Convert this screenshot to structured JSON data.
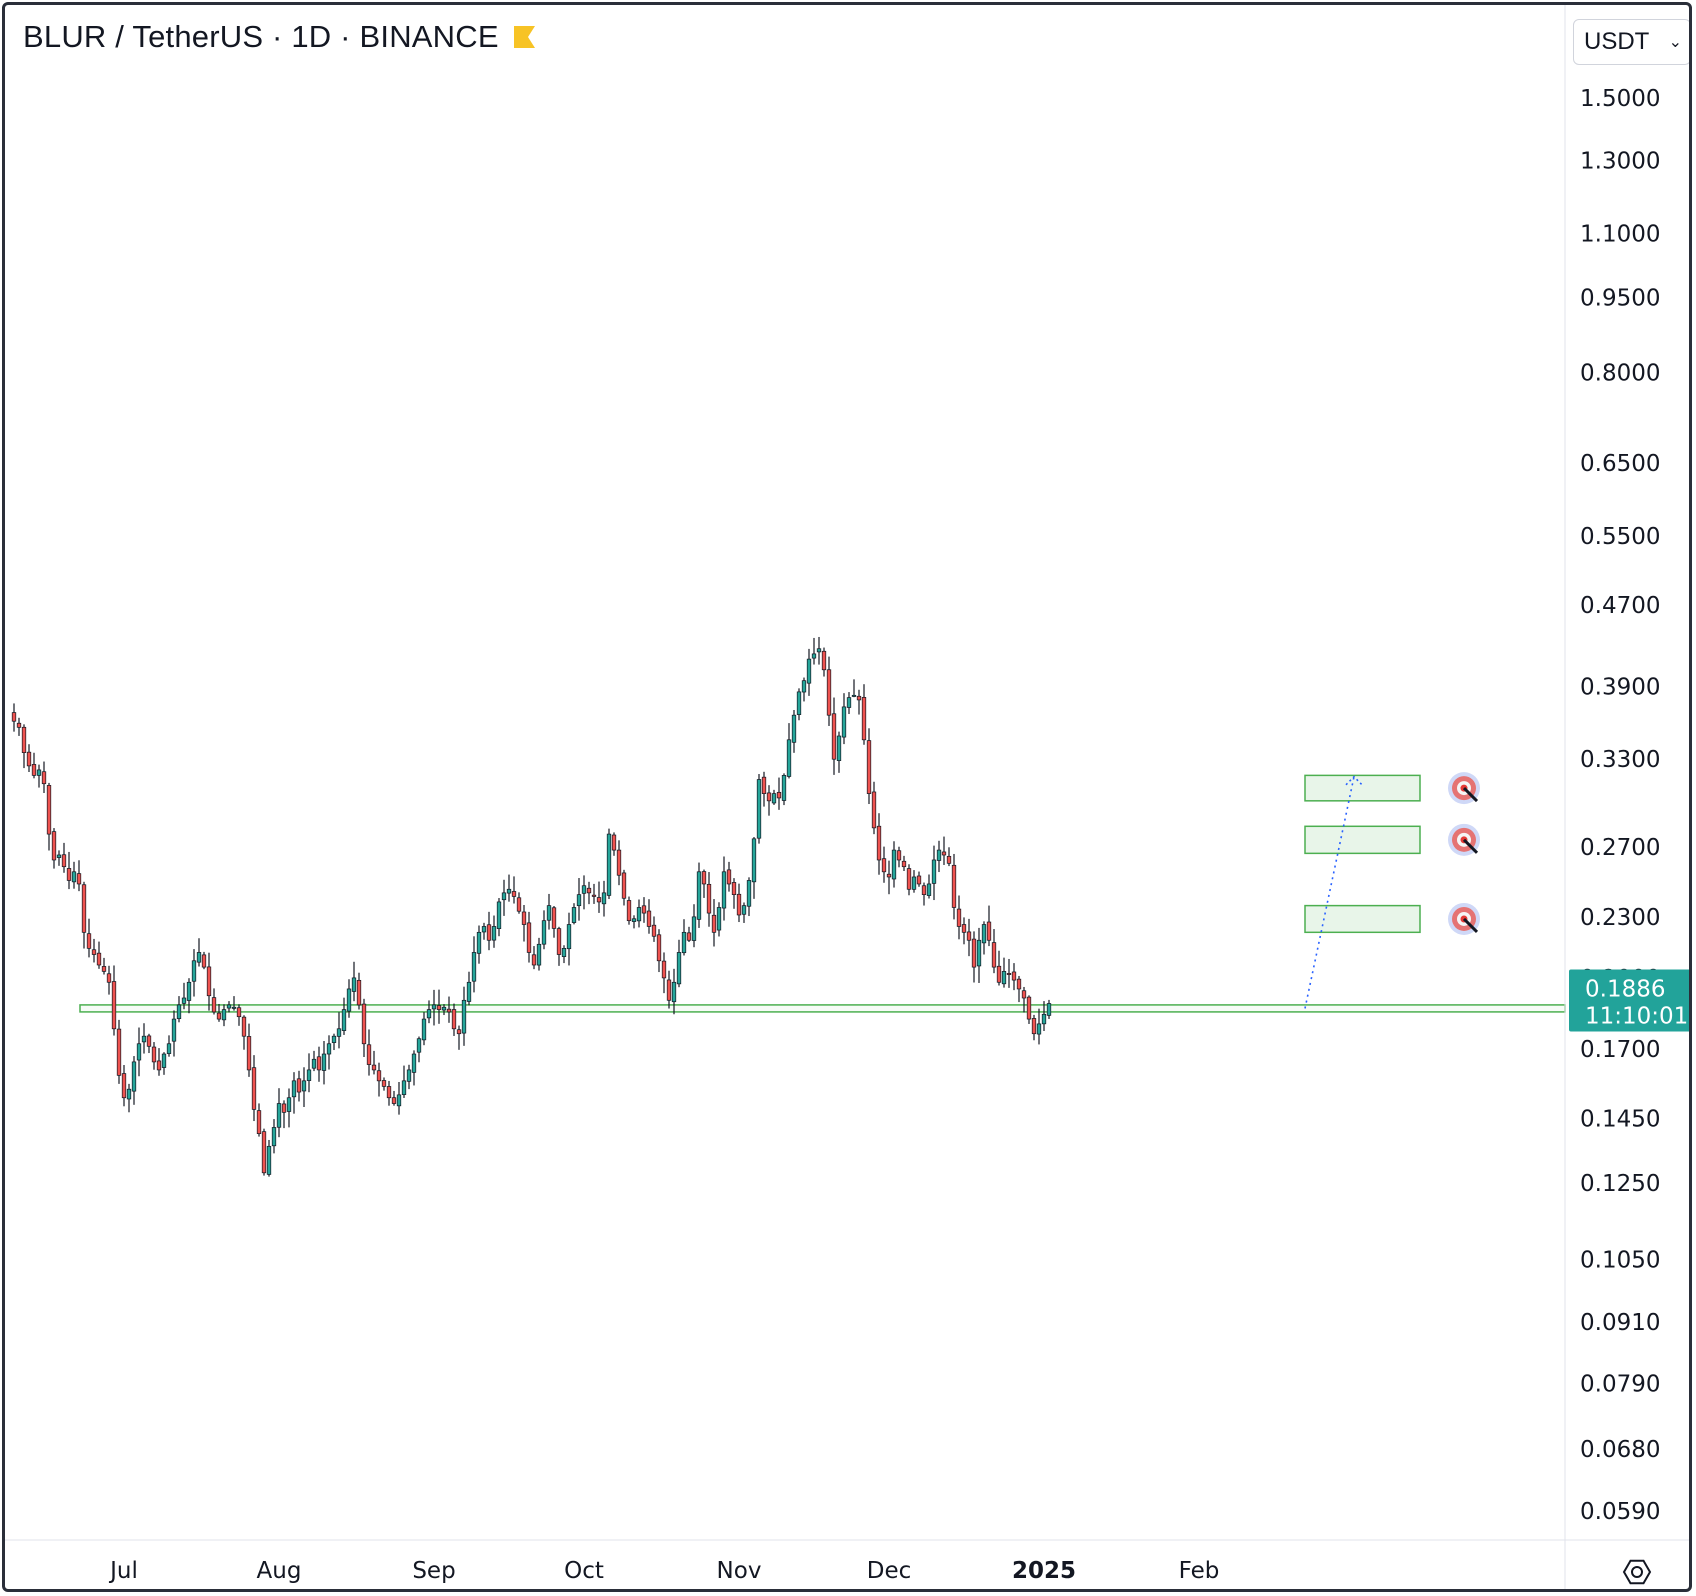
{
  "header": {
    "title": "BLUR / TetherUS · 1D · BINANCE",
    "flag_icon": "flag-icon",
    "flag_color": "#f7c325"
  },
  "currency": {
    "label": "USDT",
    "icon": "chevron-down-icon"
  },
  "colors": {
    "up_candle": "#26a69a",
    "down_candle": "#ef5350",
    "wick": "#131722",
    "zone_stroke": "#4caf50",
    "zone_fill": "#e8f5e9",
    "projection": "#2962ff",
    "price_tag": "#22a39a"
  },
  "chart_data": {
    "type": "candlestick",
    "title": "BLUR / TetherUS · 1D · BINANCE",
    "y_scale": "log",
    "ylim": [
      0.055,
      1.6
    ],
    "price_ticks": [
      "1.5000",
      "1.3000",
      "1.1000",
      "0.9500",
      "0.8000",
      "0.6500",
      "0.5500",
      "0.4700",
      "0.3900",
      "0.3300",
      "0.2700",
      "0.2300",
      "0.2000",
      "0.1700",
      "0.1450",
      "0.1250",
      "0.1050",
      "0.0910",
      "0.0790",
      "0.0680",
      "0.0590"
    ],
    "time_labels": [
      {
        "date": "2024-07-01",
        "label": "Jul",
        "bold": false
      },
      {
        "date": "2024-08-01",
        "label": "Aug",
        "bold": false
      },
      {
        "date": "2024-09-01",
        "label": "Sep",
        "bold": false
      },
      {
        "date": "2024-10-01",
        "label": "Oct",
        "bold": false
      },
      {
        "date": "2024-11-01",
        "label": "Nov",
        "bold": false
      },
      {
        "date": "2024-12-01",
        "label": "Dec",
        "bold": false
      },
      {
        "date": "2025-01-01",
        "label": "2025",
        "bold": true
      },
      {
        "date": "2025-02-01",
        "label": "Feb",
        "bold": false
      }
    ],
    "start_date": "2024-06-09",
    "close_series": [
      0.36,
      0.355,
      0.335,
      0.325,
      0.318,
      0.322,
      0.312,
      0.278,
      0.262,
      0.265,
      0.258,
      0.25,
      0.255,
      0.248,
      0.222,
      0.214,
      0.211,
      0.206,
      0.203,
      0.198,
      0.178,
      0.16,
      0.152,
      0.155,
      0.165,
      0.172,
      0.175,
      0.171,
      0.165,
      0.162,
      0.168,
      0.172,
      0.182,
      0.188,
      0.191,
      0.198,
      0.208,
      0.212,
      0.205,
      0.192,
      0.185,
      0.182,
      0.186,
      0.188,
      0.187,
      0.183,
      0.175,
      0.162,
      0.148,
      0.14,
      0.128,
      0.136,
      0.142,
      0.15,
      0.147,
      0.152,
      0.158,
      0.154,
      0.158,
      0.162,
      0.166,
      0.162,
      0.168,
      0.172,
      0.175,
      0.178,
      0.186,
      0.195,
      0.2,
      0.188,
      0.172,
      0.164,
      0.162,
      0.158,
      0.156,
      0.152,
      0.15,
      0.153,
      0.158,
      0.162,
      0.168,
      0.174,
      0.182,
      0.186,
      0.188,
      0.186,
      0.187,
      0.185,
      0.178,
      0.176,
      0.19,
      0.198,
      0.212,
      0.222,
      0.225,
      0.218,
      0.225,
      0.238,
      0.243,
      0.245,
      0.241,
      0.233,
      0.226,
      0.212,
      0.206,
      0.216,
      0.228,
      0.236,
      0.224,
      0.211,
      0.214,
      0.226,
      0.235,
      0.242,
      0.247,
      0.243,
      0.241,
      0.238,
      0.243,
      0.278,
      0.268,
      0.253,
      0.24,
      0.228,
      0.229,
      0.235,
      0.232,
      0.225,
      0.22,
      0.208,
      0.2,
      0.19,
      0.198,
      0.212,
      0.222,
      0.218,
      0.23,
      0.255,
      0.248,
      0.232,
      0.222,
      0.235,
      0.255,
      0.248,
      0.242,
      0.231,
      0.236,
      0.25,
      0.275,
      0.315,
      0.305,
      0.3,
      0.305,
      0.302,
      0.318,
      0.345,
      0.365,
      0.385,
      0.395,
      0.415,
      0.42,
      0.425,
      0.405,
      0.365,
      0.33,
      0.348,
      0.372,
      0.38,
      0.382,
      0.378,
      0.345,
      0.305,
      0.282,
      0.262,
      0.255,
      0.252,
      0.268,
      0.262,
      0.258,
      0.245,
      0.252,
      0.248,
      0.242,
      0.248,
      0.262,
      0.268,
      0.265,
      0.26,
      0.235,
      0.225,
      0.222,
      0.218,
      0.205,
      0.218,
      0.226,
      0.218,
      0.205,
      0.198,
      0.203,
      0.202,
      0.199,
      0.195,
      0.191,
      0.182,
      0.176,
      0.18,
      0.184,
      0.1886
    ],
    "support_level": 0.1865,
    "target_zones": [
      {
        "low": 0.3,
        "high": 0.318,
        "icon": "target-icon"
      },
      {
        "low": 0.266,
        "high": 0.283,
        "icon": "target-icon"
      },
      {
        "low": 0.222,
        "high": 0.236,
        "icon": "target-icon"
      }
    ],
    "projection_end_price": 0.317,
    "last_price": "0.1886",
    "countdown": "11:10:01"
  },
  "footer": {
    "settings_icon": "gear-icon"
  }
}
